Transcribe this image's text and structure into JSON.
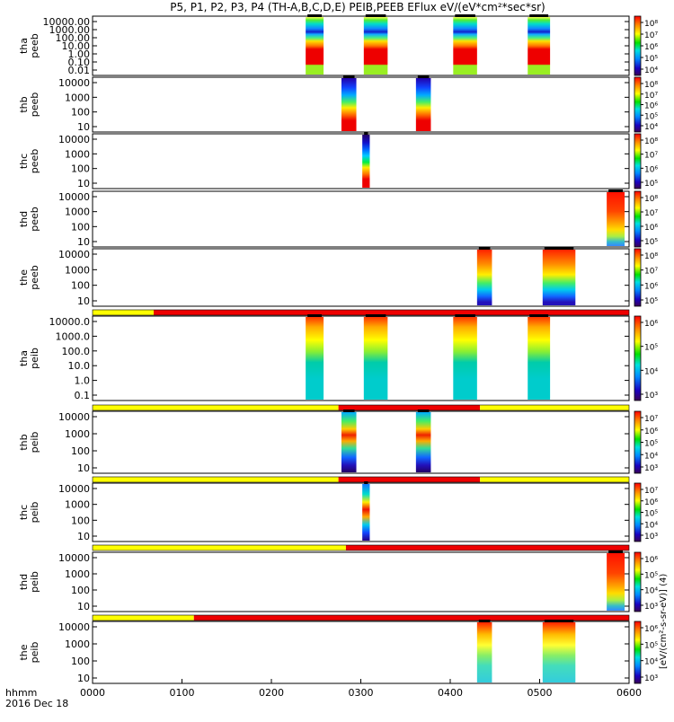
{
  "title": "P5, P1, P2, P3, P4 (TH-A,B,C,D,E) PEIB,PEEB EFlux eV/(eV*cm²*sec*sr)",
  "x_axis": {
    "ticks": [
      "0000",
      "0100",
      "0200",
      "0300",
      "0400",
      "0500",
      "0600"
    ],
    "label_line1": "hhmm",
    "label_line2": "2016 Dec 18"
  },
  "colorbar_title": "[eV/(cm²-s-sr-eV)] (4)",
  "colors": {
    "flag_yellow": "#ffff00",
    "flag_red": "#ee0000",
    "data_red": "#e00000",
    "bar_black": "#000000"
  },
  "chart_data": {
    "type": "heatmap",
    "x_range_hhmm": [
      "0000",
      "0600"
    ],
    "panels": [
      {
        "probe": "tha",
        "instrument": "peeb",
        "y_ticks": [
          "10000.00",
          "1000.00",
          "100.00",
          "10.00",
          "1.00",
          "0.10",
          "0.01"
        ],
        "cbar_ticks": [
          "10⁸",
          "10⁷",
          "10⁶",
          "10⁵",
          "10⁴"
        ],
        "intervals": [
          [
            "0223",
            "0235",
            "A"
          ],
          [
            "0302",
            "0318",
            "A"
          ],
          [
            "0402",
            "0418",
            "A"
          ],
          [
            "0452",
            "0507",
            "A"
          ]
        ]
      },
      {
        "probe": "thb",
        "instrument": "peeb",
        "y_ticks": [
          "10000",
          "1000",
          "100",
          "10"
        ],
        "cbar_ticks": [
          "10⁸",
          "10⁷",
          "10⁶",
          "10⁵",
          "10⁴"
        ],
        "intervals": [
          [
            "0247",
            "0257",
            "B"
          ],
          [
            "0337",
            "0347",
            "B"
          ]
        ]
      },
      {
        "probe": "thc",
        "instrument": "peeb",
        "y_ticks": [
          "10000",
          "1000",
          "100",
          "10"
        ],
        "cbar_ticks": [
          "10⁸",
          "10⁷",
          "10⁶",
          "10⁵"
        ],
        "intervals": [
          [
            "0301",
            "0306",
            "C"
          ]
        ]
      },
      {
        "probe": "thd",
        "instrument": "peeb",
        "y_ticks": [
          "10000",
          "1000",
          "100",
          "10"
        ],
        "cbar_ticks": [
          "10⁸",
          "10⁷",
          "10⁶",
          "10⁵"
        ],
        "intervals": [
          [
            "0545",
            "0557",
            "D"
          ]
        ]
      },
      {
        "probe": "the",
        "instrument": "peeb",
        "y_ticks": [
          "10000",
          "1000",
          "100",
          "10"
        ],
        "cbar_ticks": [
          "10⁸",
          "10⁷",
          "10⁶",
          "10⁵"
        ],
        "intervals": [
          [
            "0418",
            "0428",
            "E"
          ],
          [
            "0502",
            "0524",
            "E"
          ]
        ]
      },
      {
        "probe": "tha",
        "instrument": "peib",
        "y_ticks": [
          "10000.0",
          "1000.0",
          "100.0",
          "10.0",
          "1.0",
          "0.1"
        ],
        "cbar_ticks": [
          "10⁶",
          "10⁵",
          "10⁴",
          "10³"
        ],
        "flag": [
          [
            "0000",
            "0041",
            "yellow"
          ],
          [
            "0041",
            "0600",
            "red"
          ]
        ],
        "intervals": [
          [
            "0223",
            "0235",
            "F"
          ],
          [
            "0302",
            "0318",
            "F"
          ],
          [
            "0402",
            "0418",
            "F"
          ],
          [
            "0452",
            "0507",
            "F"
          ]
        ]
      },
      {
        "probe": "thb",
        "instrument": "peib",
        "y_ticks": [
          "10000",
          "1000",
          "100",
          "10"
        ],
        "cbar_ticks": [
          "10⁷",
          "10⁶",
          "10⁵",
          "10⁴",
          "10³"
        ],
        "flag": [
          [
            "0000",
            "0245",
            "yellow"
          ],
          [
            "0245",
            "0420",
            "red"
          ],
          [
            "0420",
            "0600",
            "yellow"
          ]
        ],
        "intervals": [
          [
            "0247",
            "0257",
            "G"
          ],
          [
            "0337",
            "0347",
            "G"
          ]
        ]
      },
      {
        "probe": "thc",
        "instrument": "peib",
        "y_ticks": [
          "10000",
          "1000",
          "100",
          "10"
        ],
        "cbar_ticks": [
          "10⁷",
          "10⁶",
          "10⁵",
          "10⁴",
          "10³"
        ],
        "flag": [
          [
            "0000",
            "0245",
            "yellow"
          ],
          [
            "0245",
            "0420",
            "red"
          ],
          [
            "0420",
            "0600",
            "yellow"
          ]
        ],
        "intervals": [
          [
            "0301",
            "0306",
            "H"
          ]
        ]
      },
      {
        "probe": "thd",
        "instrument": "peib",
        "y_ticks": [
          "10000",
          "1000",
          "100",
          "10"
        ],
        "cbar_ticks": [
          "10⁶",
          "10⁵",
          "10⁴",
          "10³"
        ],
        "flag": [
          [
            "0000",
            "0250",
            "yellow"
          ],
          [
            "0250",
            "0600",
            "red"
          ]
        ],
        "intervals": [
          [
            "0545",
            "0557",
            "D"
          ]
        ]
      },
      {
        "probe": "the",
        "instrument": "peib",
        "y_ticks": [
          "10000",
          "1000",
          "100",
          "10"
        ],
        "cbar_ticks": [
          "10⁶",
          "10⁵",
          "10⁴",
          "10³"
        ],
        "flag": [
          [
            "0000",
            "0108",
            "yellow"
          ],
          [
            "0108",
            "0600",
            "red"
          ]
        ],
        "intervals": [
          [
            "0418",
            "0428",
            "I"
          ],
          [
            "0502",
            "0524",
            "I"
          ]
        ]
      }
    ]
  }
}
